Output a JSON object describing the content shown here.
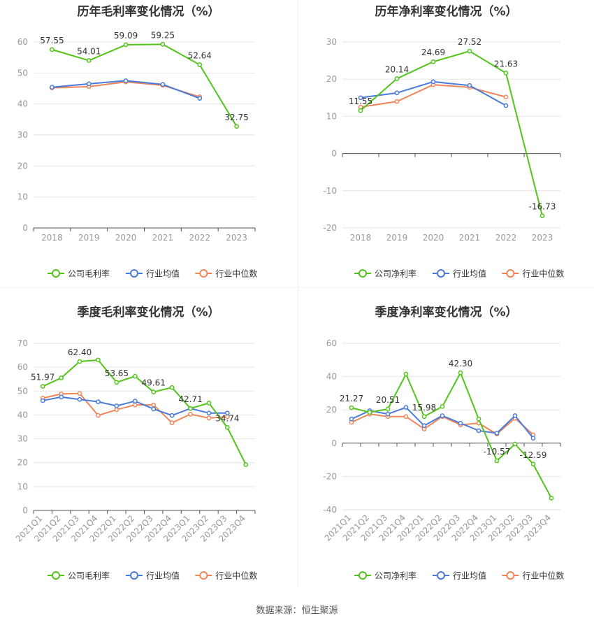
{
  "source_text": "数据来源：恒生聚源",
  "colors": {
    "company": "#52c41a",
    "avg": "#4a7bd9",
    "median": "#f0855a",
    "grid": "#e6e6e6",
    "axis": "#999999"
  },
  "legend": {
    "company_gross": "公司毛利率",
    "company_net": "公司净利率",
    "avg": "行业均值",
    "median": "行业中位数"
  },
  "chart_data": [
    {
      "type": "line",
      "title": "历年毛利率变化情况（%）",
      "categories": [
        "2018",
        "2019",
        "2020",
        "2021",
        "2022",
        "2023"
      ],
      "ylim": [
        0,
        60
      ],
      "yticks": [
        0,
        10,
        20,
        30,
        40,
        50,
        60
      ],
      "series": [
        {
          "name": "公司毛利率",
          "key": "company",
          "values": [
            57.55,
            54.01,
            59.09,
            59.25,
            52.64,
            32.75
          ],
          "labels": [
            "57.55",
            "54.01",
            "59.09",
            "59.25",
            "52.64",
            "32.75"
          ]
        },
        {
          "name": "行业均值",
          "key": "avg",
          "values": [
            45.4,
            46.5,
            47.5,
            46.3,
            41.8,
            null
          ]
        },
        {
          "name": "行业中位数",
          "key": "median",
          "values": [
            45.2,
            45.6,
            47.1,
            46.0,
            42.3,
            null
          ]
        }
      ],
      "legend_key": "company_gross"
    },
    {
      "type": "line",
      "title": "历年净利率变化情况（%）",
      "categories": [
        "2018",
        "2019",
        "2020",
        "2021",
        "2022",
        "2023"
      ],
      "ylim": [
        -20,
        30
      ],
      "yticks": [
        -20,
        -10,
        0,
        10,
        20,
        30
      ],
      "series": [
        {
          "name": "公司净利率",
          "key": "company",
          "values": [
            11.55,
            20.14,
            24.69,
            27.52,
            21.63,
            -16.73
          ],
          "labels": [
            "11.55",
            "20.14",
            "24.69",
            "27.52",
            "21.63",
            "-16.73"
          ]
        },
        {
          "name": "行业均值",
          "key": "avg",
          "values": [
            15.0,
            16.3,
            19.3,
            18.3,
            12.9,
            null
          ]
        },
        {
          "name": "行业中位数",
          "key": "median",
          "values": [
            12.5,
            14.0,
            18.5,
            17.8,
            15.2,
            null
          ]
        }
      ],
      "legend_key": "company_net"
    },
    {
      "type": "line",
      "title": "季度毛利率变化情况（%）",
      "categories": [
        "2021Q1",
        "2021Q2",
        "2021Q3",
        "2021Q4",
        "2022Q1",
        "2022Q2",
        "2022Q3",
        "2022Q4",
        "2023Q1",
        "2023Q2",
        "2023Q3",
        "2023Q4"
      ],
      "ylim": [
        0,
        70
      ],
      "yticks": [
        0,
        10,
        20,
        30,
        40,
        50,
        60,
        70
      ],
      "series": [
        {
          "name": "公司毛利率",
          "key": "company",
          "values": [
            51.97,
            55.5,
            62.4,
            63.0,
            53.65,
            56.2,
            49.61,
            51.5,
            42.71,
            45.0,
            34.74,
            19.2
          ],
          "labels": [
            "51.97",
            "",
            "62.40",
            "",
            "53.65",
            "",
            "49.61",
            "",
            "42.71",
            "",
            "34.74",
            ""
          ]
        },
        {
          "name": "行业均值",
          "key": "avg",
          "values": [
            46.0,
            47.5,
            46.5,
            45.5,
            43.8,
            45.8,
            42.5,
            39.8,
            42.7,
            40.8,
            40.8,
            null
          ]
        },
        {
          "name": "行业中位数",
          "key": "median",
          "values": [
            47.0,
            48.8,
            49.0,
            39.8,
            42.2,
            44.2,
            44.2,
            36.7,
            40.3,
            38.7,
            39.2,
            null
          ]
        }
      ],
      "legend_key": "company_gross"
    },
    {
      "type": "line",
      "title": "季度净利率变化情况（%）",
      "categories": [
        "2021Q1",
        "2021Q2",
        "2021Q3",
        "2021Q4",
        "2022Q1",
        "2022Q2",
        "2022Q3",
        "2022Q4",
        "2023Q1",
        "2023Q2",
        "2023Q3",
        "2023Q4"
      ],
      "ylim": [
        -40,
        60
      ],
      "yticks": [
        -40,
        -20,
        0,
        20,
        40,
        60
      ],
      "series": [
        {
          "name": "公司净利率",
          "key": "company",
          "values": [
            21.27,
            18.5,
            20.51,
            41.5,
            15.98,
            22.0,
            42.3,
            14.5,
            -10.57,
            -0.5,
            -12.59,
            -33.0
          ],
          "labels": [
            "21.27",
            "",
            "20.51",
            "",
            "15.98",
            "",
            "42.30",
            "",
            "-10.57",
            "",
            "-12.59",
            ""
          ]
        },
        {
          "name": "行业均值",
          "key": "avg",
          "values": [
            14.5,
            19.5,
            17.5,
            21.5,
            10.5,
            16.5,
            12.0,
            7.5,
            6.0,
            16.5,
            3.0,
            null
          ]
        },
        {
          "name": "行业中位数",
          "key": "median",
          "values": [
            12.5,
            17.5,
            16.0,
            16.0,
            8.5,
            16.0,
            11.0,
            12.0,
            5.5,
            15.0,
            5.0,
            null
          ]
        }
      ],
      "legend_key": "company_net"
    }
  ]
}
